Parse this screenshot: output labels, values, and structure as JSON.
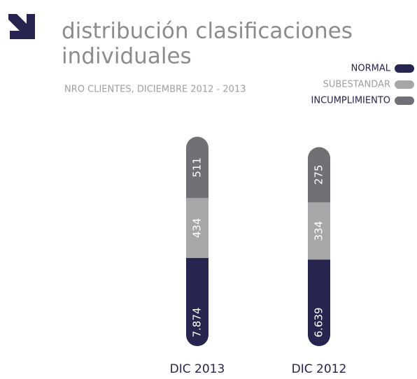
{
  "chart_data": {
    "type": "stacked-bar",
    "title": [
      "distribución clasificaciones",
      "individuales"
    ],
    "subtitle": "NRO CLIENTES, DICIEMBRE 2012 - 2013",
    "categories": [
      "DIC 2013",
      "DIC 2012"
    ],
    "series": [
      {
        "name": "NORMAL",
        "color": "#27244f",
        "values": [
          7874,
          6639
        ],
        "value_labels": [
          "7.874",
          "6.639"
        ]
      },
      {
        "name": "SUBESTANDAR",
        "color": "#a7a7a9",
        "values": [
          434,
          334
        ]
      },
      {
        "name": "INCUMPLIMIENTO",
        "color": "#707174",
        "values": [
          511,
          275
        ]
      }
    ],
    "legend": "top-right"
  }
}
